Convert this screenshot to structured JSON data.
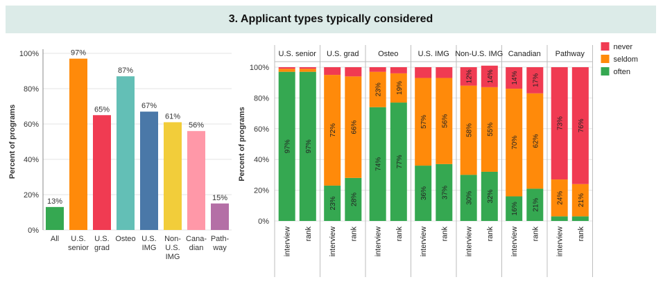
{
  "title": "3. Applicant types typically considered",
  "colors": {
    "often": "#35a851",
    "seldom": "#ff8a0a",
    "never": "#f03b52",
    "grid": "#e3e3e3",
    "axis": "#888888",
    "panel_line": "#bdbdbd"
  },
  "chart_data": [
    {
      "type": "bar",
      "title": "",
      "xlabel": "",
      "ylabel": "Percent of programs",
      "ylim": [
        0,
        100
      ],
      "yticks": [
        "0%",
        "20%",
        "40%",
        "60%",
        "80%",
        "100%"
      ],
      "categories": [
        "All",
        "U.S. senior",
        "U.S. grad",
        "Osteo",
        "U.S. IMG",
        "Non-U.S. IMG",
        "Cana-dian",
        "Path-way"
      ],
      "category_lines": [
        [
          "All"
        ],
        [
          "U.S.",
          "senior"
        ],
        [
          "U.S.",
          "grad"
        ],
        [
          "Osteo"
        ],
        [
          "U.S.",
          "IMG"
        ],
        [
          "Non-",
          "U.S.",
          "IMG"
        ],
        [
          "Cana-",
          "dian"
        ],
        [
          "Path-",
          "way"
        ]
      ],
      "values": [
        13,
        97,
        65,
        87,
        67,
        61,
        56,
        15
      ],
      "value_labels": [
        "13%",
        "97%",
        "65%",
        "87%",
        "67%",
        "61%",
        "56%",
        "15%"
      ],
      "bar_colors": [
        "#35a851",
        "#ff8a0a",
        "#f03b52",
        "#63bfb6",
        "#4a78a8",
        "#f2cd3a",
        "#ff98a8",
        "#b46fa6"
      ]
    },
    {
      "type": "bar",
      "stacked": true,
      "title": "",
      "ylabel": "Percent of programs",
      "ylim": [
        0,
        100
      ],
      "yticks": [
        "0%",
        "20%",
        "40%",
        "60%",
        "80%",
        "100%"
      ],
      "groups": [
        "U.S. senior",
        "U.S. grad",
        "Osteo",
        "U.S. IMG",
        "Non-U.S. IMG",
        "Canadian",
        "Pathway"
      ],
      "subcategories": [
        "interview",
        "rank"
      ],
      "series": [
        {
          "name": "often",
          "values": [
            [
              97,
              97
            ],
            [
              23,
              28
            ],
            [
              74,
              77
            ],
            [
              36,
              37
            ],
            [
              30,
              32
            ],
            [
              16,
              21
            ],
            [
              3,
              3
            ]
          ],
          "labels": [
            [
              "97%",
              "97%"
            ],
            [
              "23%",
              "28%"
            ],
            [
              "74%",
              "77%"
            ],
            [
              "36%",
              "37%"
            ],
            [
              "30%",
              "32%"
            ],
            [
              "16%",
              "21%"
            ],
            [
              "",
              ""
            ]
          ]
        },
        {
          "name": "seldom",
          "values": [
            [
              2,
              2
            ],
            [
              72,
              66
            ],
            [
              23,
              19
            ],
            [
              57,
              56
            ],
            [
              58,
              55
            ],
            [
              70,
              62
            ],
            [
              24,
              21
            ]
          ],
          "labels": [
            [
              "",
              ""
            ],
            [
              "72%",
              "66%"
            ],
            [
              "23%",
              "19%"
            ],
            [
              "57%",
              "56%"
            ],
            [
              "58%",
              "55%"
            ],
            [
              "70%",
              "62%"
            ],
            [
              "24%",
              "21%"
            ]
          ]
        },
        {
          "name": "never",
          "values": [
            [
              1,
              1
            ],
            [
              5,
              6
            ],
            [
              3,
              4
            ],
            [
              7,
              7
            ],
            [
              12,
              14
            ],
            [
              14,
              17
            ],
            [
              73,
              76
            ]
          ],
          "labels": [
            [
              "",
              ""
            ],
            [
              "",
              ""
            ],
            [
              "",
              ""
            ],
            [
              "",
              ""
            ],
            [
              "12%",
              "14%"
            ],
            [
              "14%",
              "17%"
            ],
            [
              "73%",
              "76%"
            ]
          ]
        }
      ],
      "legend": {
        "position": "top-right",
        "order": [
          "never",
          "seldom",
          "often"
        ]
      }
    }
  ]
}
